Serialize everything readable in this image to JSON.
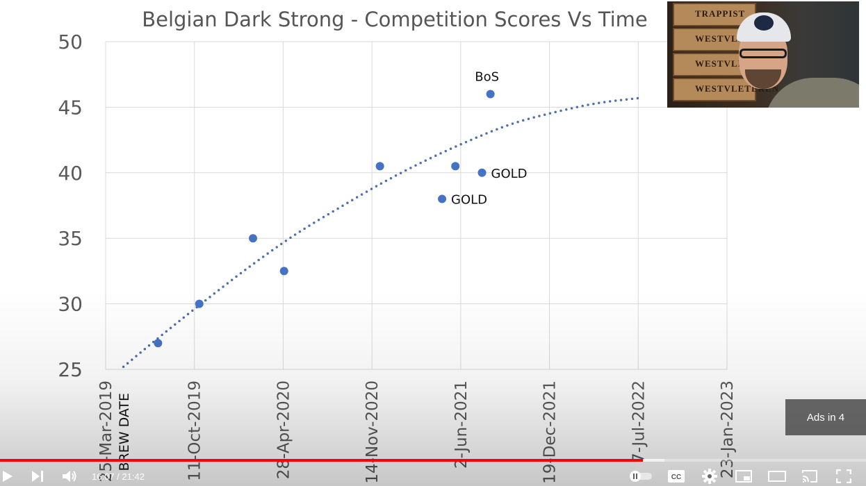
{
  "player": {
    "current_time": "16:07",
    "separator": " / ",
    "duration": "21:42",
    "played_fraction": 0.7425,
    "loaded_fraction": 0.767,
    "ads_badge": "Ads in 4",
    "colors": {
      "progress_played": "#ff0000",
      "controls": "#ffffff"
    },
    "controls": {
      "play": "play-icon",
      "next": "next-icon",
      "volume": "volume-icon",
      "autoplay": "autoplay-toggle-icon",
      "captions": "captions-icon",
      "settings": "gear-icon",
      "miniplayer": "miniplayer-icon",
      "theater": "theater-mode-icon",
      "cast": "cast-icon",
      "fullscreen": "fullscreen-icon"
    }
  },
  "webcam": {
    "crate_text": [
      "TRAPPIST",
      "WESTVLETEREN",
      "WESTVLETEREN",
      "WESTVLETEREN"
    ]
  },
  "chart_data": {
    "type": "scatter",
    "title": "Belgian Dark Strong - Competition Scores Vs Time",
    "ylim": [
      25,
      50
    ],
    "yticks": [
      25,
      30,
      35,
      40,
      45,
      50
    ],
    "xlim": [
      "2019-03-25",
      "2023-01-23"
    ],
    "xticks": [
      "25-Mar-2019",
      "11-Oct-2019",
      "28-Apr-2020",
      "14-Nov-2020",
      "2-Jun-2021",
      "19-Dec-2021",
      "7-Jul-2022",
      "23-Jan-2023"
    ],
    "brew_date_label": "BREW DATE",
    "grid": true,
    "legend": "none",
    "colors": {
      "points": "#4472c4",
      "trendline": "#4f6fad",
      "grid": "#d9d9d9"
    },
    "points": [
      {
        "x": "2019-07-21",
        "y": 27,
        "label": ""
      },
      {
        "x": "2019-10-22",
        "y": 30,
        "label": ""
      },
      {
        "x": "2020-02-20",
        "y": 35,
        "label": ""
      },
      {
        "x": "2020-04-30",
        "y": 32.5,
        "label": ""
      },
      {
        "x": "2020-12-02",
        "y": 40.5,
        "label": ""
      },
      {
        "x": "2021-04-21",
        "y": 38,
        "label": "GOLD"
      },
      {
        "x": "2021-05-21",
        "y": 40.5,
        "label": ""
      },
      {
        "x": "2021-07-20",
        "y": 40,
        "label": "GOLD"
      },
      {
        "x": "2021-08-08",
        "y": 46,
        "label": "BoS"
      }
    ],
    "trendline": {
      "style": "dotted",
      "x": [
        "2019-05-04",
        "2019-08-09",
        "2019-11-14",
        "2020-02-19",
        "2020-05-26",
        "2020-08-31",
        "2020-12-06",
        "2021-03-13",
        "2021-06-18",
        "2021-09-23",
        "2021-12-29",
        "2022-04-05",
        "2022-07-10"
      ],
      "y": [
        25.2,
        27.9,
        30.5,
        33.0,
        35.3,
        37.3,
        39.2,
        40.9,
        42.4,
        43.7,
        44.6,
        45.3,
        45.7
      ]
    }
  }
}
